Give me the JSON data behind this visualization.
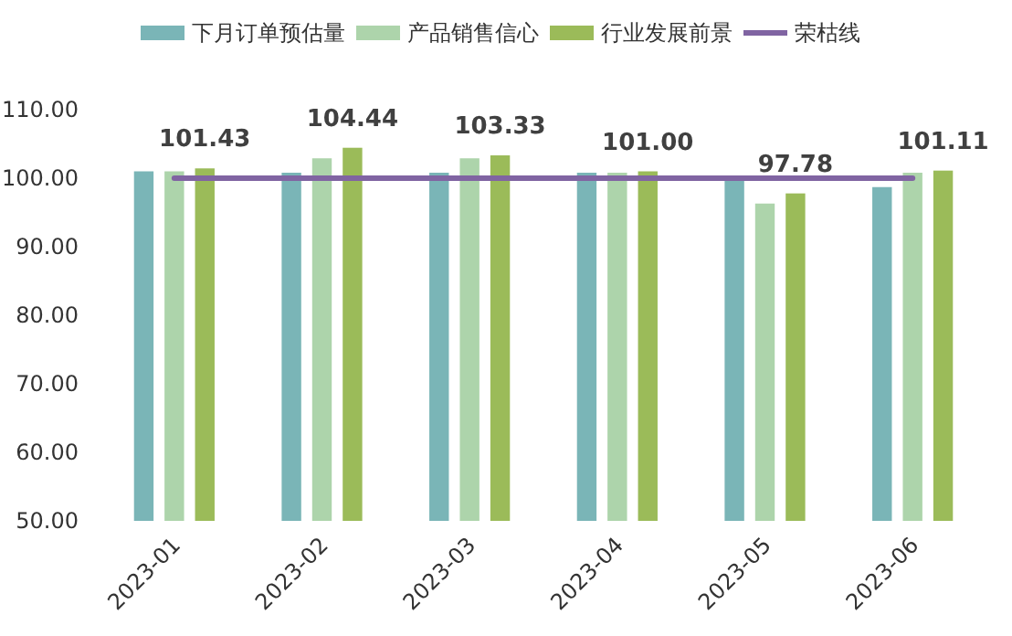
{
  "chart_data": {
    "type": "bar",
    "categories": [
      "2023-01",
      "2023-02",
      "2023-03",
      "2023-04",
      "2023-05",
      "2023-06"
    ],
    "series": [
      {
        "name": "下月订单预估量",
        "color": "#7ab5b7",
        "values": [
          101.0,
          100.8,
          100.8,
          100.8,
          100.0,
          98.7
        ]
      },
      {
        "name": "产品销售信心",
        "color": "#add4ab",
        "values": [
          101.0,
          102.9,
          102.9,
          100.8,
          96.3,
          100.8
        ]
      },
      {
        "name": "行业发展前景",
        "color": "#9bbb59",
        "values": [
          101.43,
          104.44,
          103.33,
          101.0,
          97.78,
          101.11
        ],
        "value_labels": [
          "101.43",
          "104.44",
          "103.33",
          "101.00",
          "97.78",
          "101.11"
        ]
      },
      {
        "name": "荣枯线",
        "type": "line",
        "color": "#8064a2",
        "values": [
          100,
          100,
          100,
          100,
          100,
          100
        ]
      }
    ],
    "ylim": [
      50,
      110
    ],
    "yticks": [
      {
        "value": 50,
        "label": "50.00"
      },
      {
        "value": 60,
        "label": "60.00"
      },
      {
        "value": 70,
        "label": "70.00"
      },
      {
        "value": 80,
        "label": "80.00"
      },
      {
        "value": 90,
        "label": "90.00"
      },
      {
        "value": 100,
        "label": "100.00"
      },
      {
        "value": 110,
        "label": "110.00"
      }
    ],
    "grid": false,
    "legend": "top"
  }
}
